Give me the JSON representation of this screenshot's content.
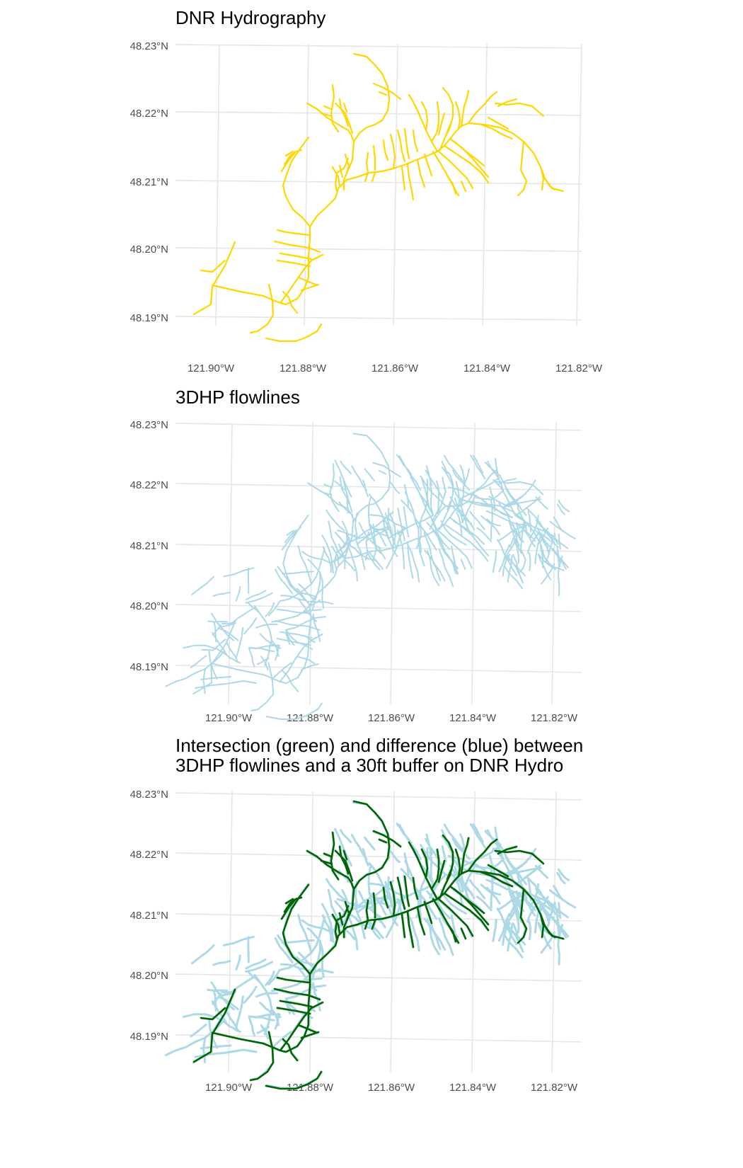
{
  "panels": [
    {
      "id": "dnr",
      "title_lines": [
        "DNR Hydrography"
      ],
      "y_ticks": [
        "48.23°N",
        "48.22°N",
        "48.21°N",
        "48.20°N",
        "48.19°N"
      ],
      "x_ticks": [
        "121.90°W",
        "121.88°W",
        "121.86°W",
        "121.84°W",
        "121.82°W"
      ],
      "layers": [
        {
          "color": "#FFD700",
          "role": "dnr"
        }
      ]
    },
    {
      "id": "3dhp",
      "title_lines": [
        "3DHP flowlines"
      ],
      "y_ticks": [
        "48.23°N",
        "48.22°N",
        "48.21°N",
        "48.20°N",
        "48.19°N"
      ],
      "x_ticks": [
        "121.90°W",
        "121.88°W",
        "121.86°W",
        "121.84°W",
        "121.82°W"
      ],
      "layers": [
        {
          "color": "#ADD8E6",
          "role": "dense"
        }
      ]
    },
    {
      "id": "intersection",
      "title_lines": [
        "Intersection (green) and difference (blue) between",
        " 3DHP flowlines and a 30ft buffer on DNR Hydro"
      ],
      "y_ticks": [
        "48.23°N",
        "48.22°N",
        "48.21°N",
        "48.20°N",
        "48.19°N"
      ],
      "x_ticks": [
        "121.90°W",
        "121.88°W",
        "121.86°W",
        "121.84°W",
        "121.82°W"
      ],
      "layers": [
        {
          "color": "#ADD8E6",
          "role": "dense"
        },
        {
          "color": "#006400",
          "role": "dnr"
        }
      ]
    }
  ]
}
